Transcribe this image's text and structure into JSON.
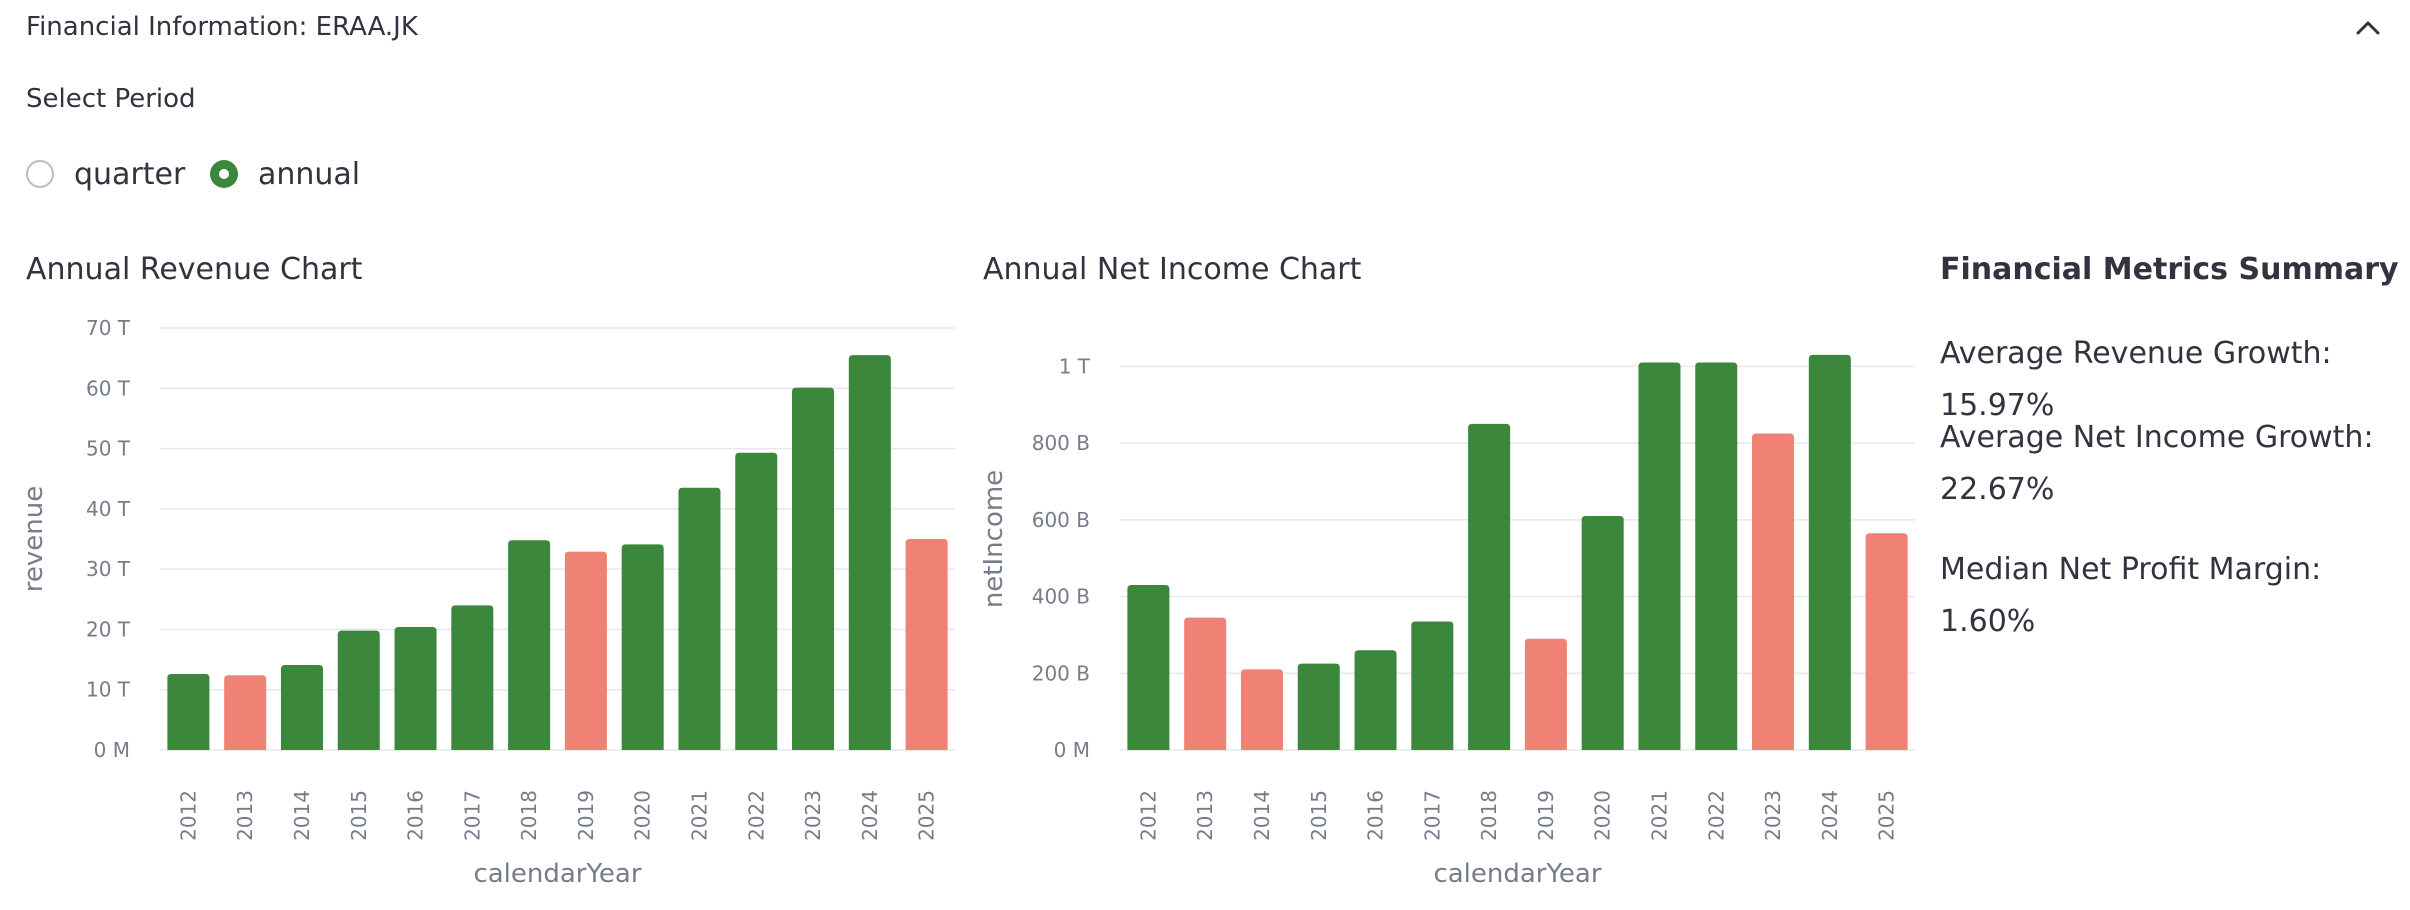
{
  "header": {
    "title": "Financial Information: ERAA.JK"
  },
  "period": {
    "label": "Select Period",
    "options": [
      "quarter",
      "annual"
    ],
    "selected": "annual"
  },
  "colors": {
    "positive": "#3b873c",
    "negative": "#ef8275",
    "grid": "#e6e8ec",
    "tick": "#767c8a"
  },
  "icons": {
    "collapse": "chevron-up-icon"
  },
  "chart_data": [
    {
      "type": "bar",
      "title": "Annual Revenue Chart",
      "xlabel": "calendarYear",
      "ylabel": "revenue",
      "categories": [
        "2012",
        "2013",
        "2014",
        "2015",
        "2016",
        "2017",
        "2018",
        "2019",
        "2020",
        "2021",
        "2022",
        "2023",
        "2024",
        "2025"
      ],
      "values": [
        12.6,
        12.4,
        14.1,
        19.8,
        20.4,
        24.0,
        34.8,
        32.9,
        34.1,
        43.5,
        49.3,
        60.1,
        65.5,
        35.0
      ],
      "unit": "T",
      "colors": [
        "positive",
        "negative",
        "positive",
        "positive",
        "positive",
        "positive",
        "positive",
        "negative",
        "positive",
        "positive",
        "positive",
        "positive",
        "positive",
        "negative"
      ],
      "ylim": [
        0,
        70
      ],
      "yticks": [
        0,
        10,
        20,
        30,
        40,
        50,
        60,
        70
      ],
      "yticklabels": [
        "0 M",
        "10 T",
        "20 T",
        "30 T",
        "40 T",
        "50 T",
        "60 T",
        "70 T"
      ],
      "grid": true
    },
    {
      "type": "bar",
      "title": "Annual Net Income Chart",
      "xlabel": "calendarYear",
      "ylabel": "netIncome",
      "categories": [
        "2012",
        "2013",
        "2014",
        "2015",
        "2016",
        "2017",
        "2018",
        "2019",
        "2020",
        "2021",
        "2022",
        "2023",
        "2024",
        "2025"
      ],
      "values": [
        430,
        345,
        210,
        225,
        260,
        335,
        850,
        290,
        610,
        1010,
        1010,
        825,
        1030,
        565
      ],
      "unit": "B",
      "colors": [
        "positive",
        "negative",
        "negative",
        "positive",
        "positive",
        "positive",
        "positive",
        "negative",
        "positive",
        "positive",
        "positive",
        "negative",
        "positive",
        "negative"
      ],
      "ylim": [
        0,
        1100
      ],
      "yticks": [
        0,
        200,
        400,
        600,
        800,
        1000
      ],
      "yticklabels": [
        "0 M",
        "200 B",
        "400 B",
        "600 B",
        "800 B",
        "1 T"
      ],
      "grid": true
    }
  ],
  "metrics": {
    "title": "Financial Metrics Summary",
    "items": [
      "Average Revenue Growth: 15.97%",
      "Average Net Income Growth: 22.67%",
      "Median Net Profit Margin: 1.60%"
    ]
  }
}
